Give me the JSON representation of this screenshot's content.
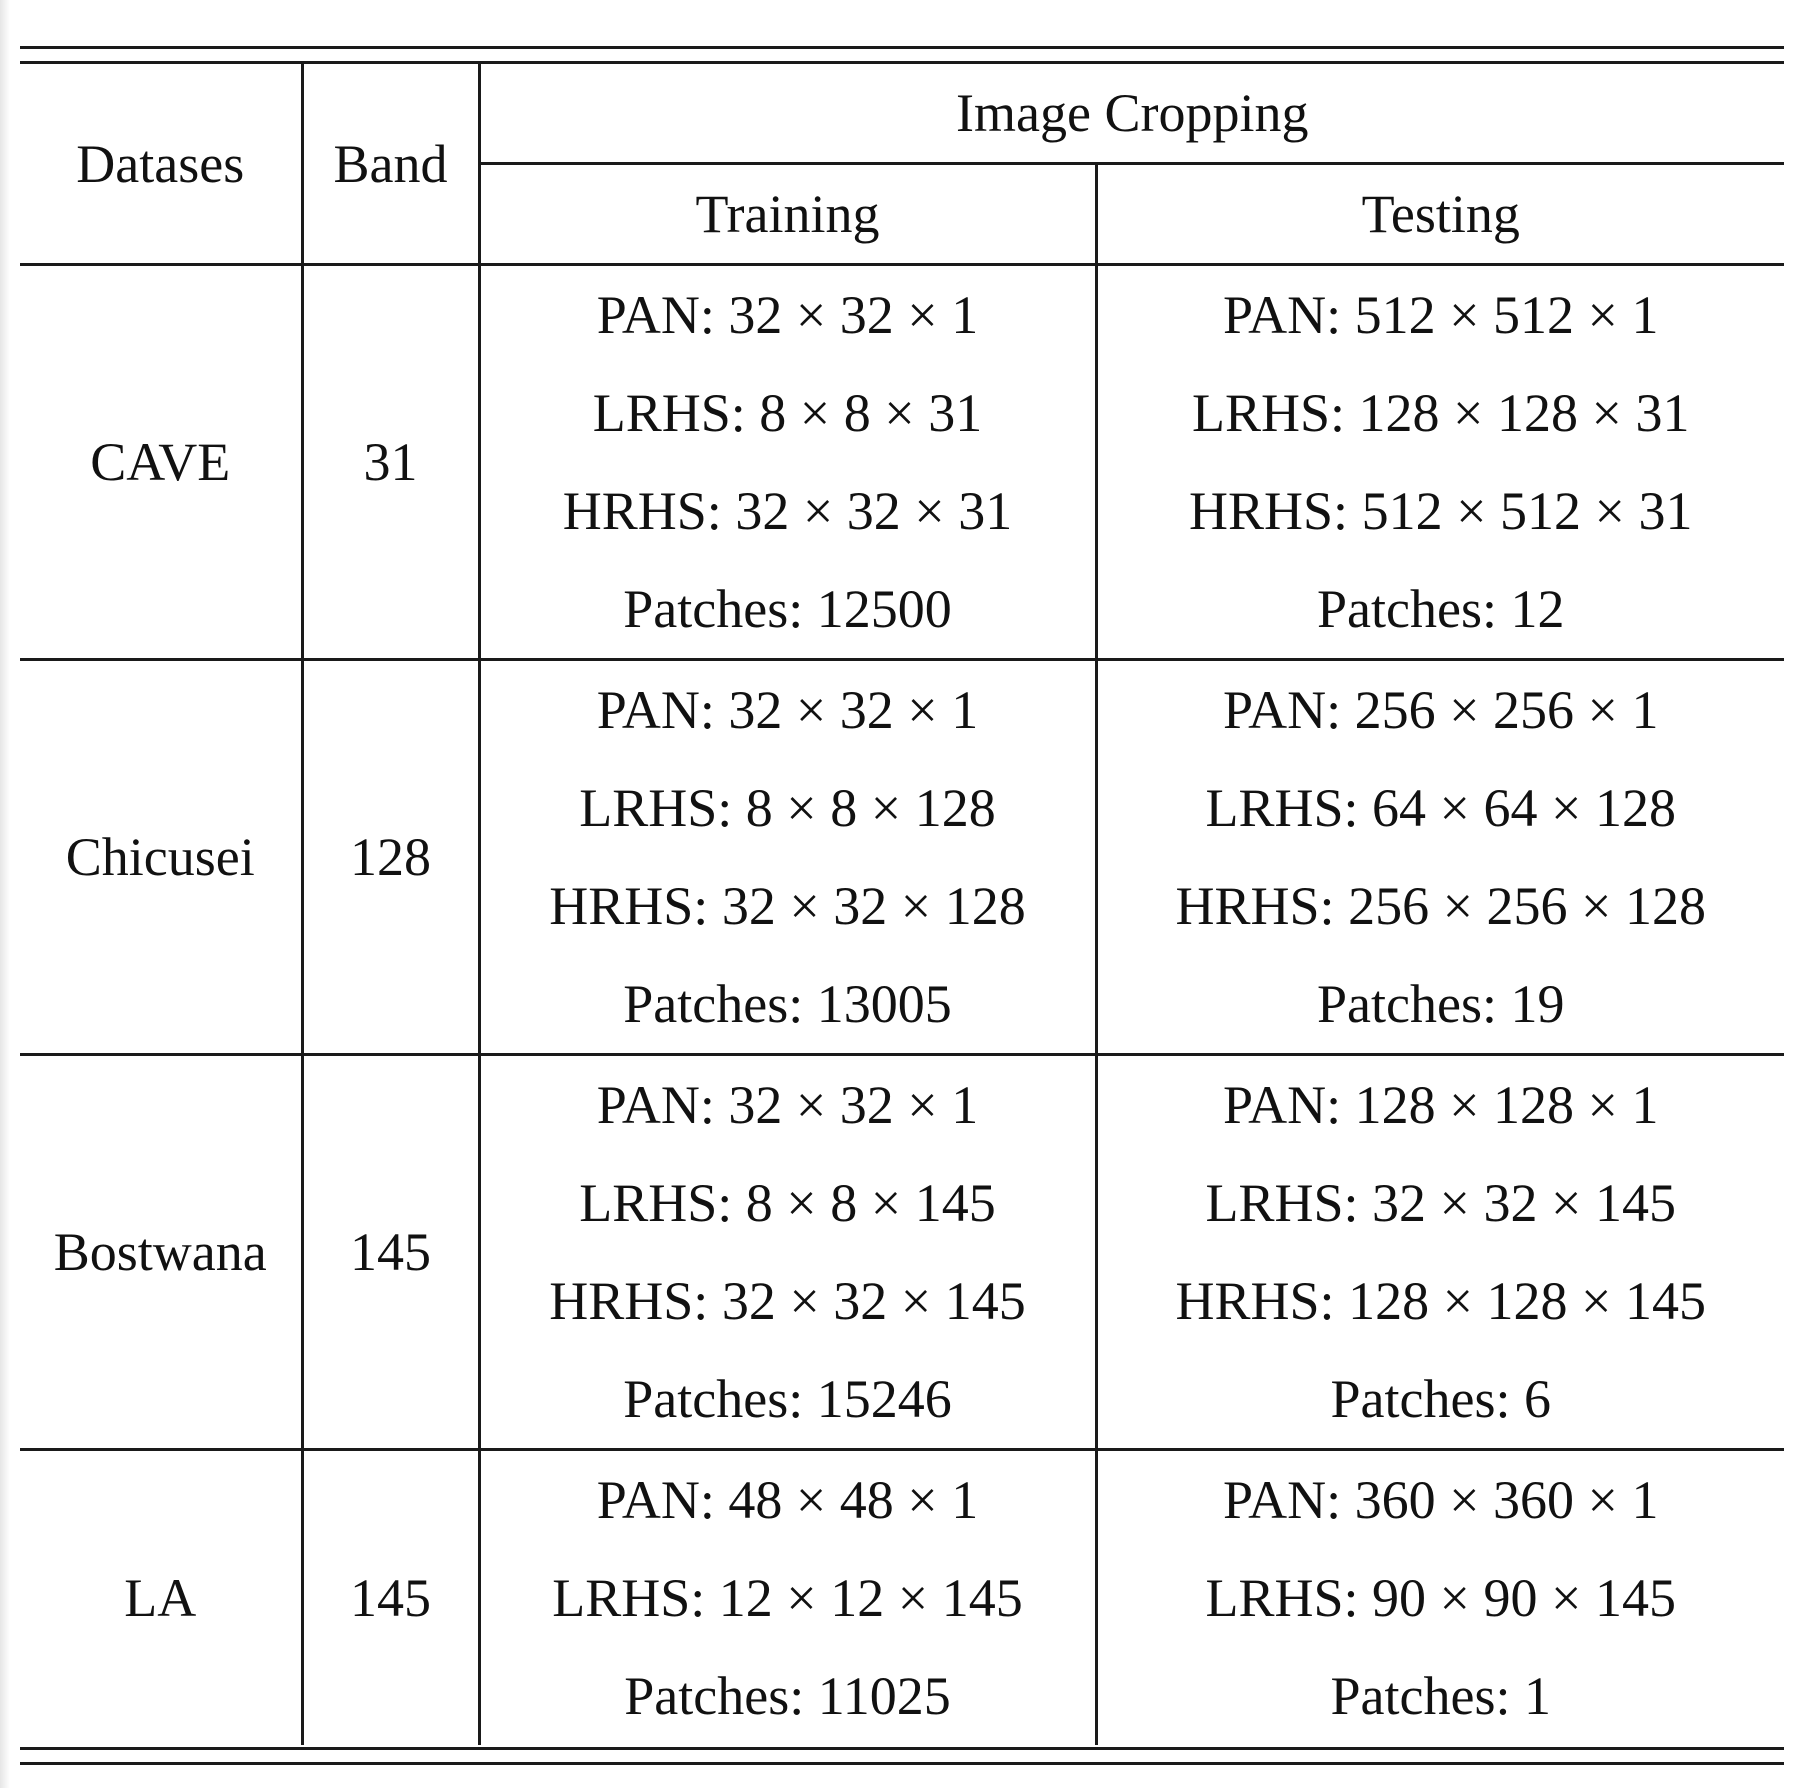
{
  "table": {
    "headers": {
      "datasets": "Datases",
      "band": "Band",
      "image_cropping": "Image Cropping",
      "training": "Training",
      "testing": "Testing"
    },
    "rows": [
      {
        "dataset": "CAVE",
        "band": "31",
        "training": [
          "PAN: 32 × 32 × 1",
          "LRHS: 8 × 8 × 31",
          "HRHS: 32 × 32 × 31",
          "Patches: 12500"
        ],
        "testing": [
          "PAN: 512 × 512 × 1",
          "LRHS: 128 × 128 × 31",
          "HRHS: 512 × 512 × 31",
          "Patches: 12"
        ]
      },
      {
        "dataset": "Chicusei",
        "band": "128",
        "training": [
          "PAN: 32 × 32 × 1",
          "LRHS: 8 × 8 × 128",
          "HRHS: 32 × 32 × 128",
          "Patches: 13005"
        ],
        "testing": [
          "PAN: 256 × 256 × 1",
          "LRHS: 64 × 64 × 128",
          "HRHS: 256 × 256 × 128",
          "Patches: 19"
        ]
      },
      {
        "dataset": "Bostwana",
        "band": "145",
        "training": [
          "PAN: 32 × 32 × 1",
          "LRHS: 8 × 8 × 145",
          "HRHS: 32 × 32 × 145",
          "Patches: 15246"
        ],
        "testing": [
          "PAN: 128 × 128 × 1",
          "LRHS: 32 × 32 × 145",
          "HRHS: 128 × 128 × 145",
          "Patches: 6"
        ]
      },
      {
        "dataset": "LA",
        "band": "145",
        "training": [
          "PAN: 48 × 48 × 1",
          "LRHS: 12 × 12 × 145",
          "Patches: 11025"
        ],
        "testing": [
          "PAN: 360 × 360 × 1",
          "LRHS: 90 × 90 × 145",
          "Patches: 1"
        ]
      }
    ]
  }
}
